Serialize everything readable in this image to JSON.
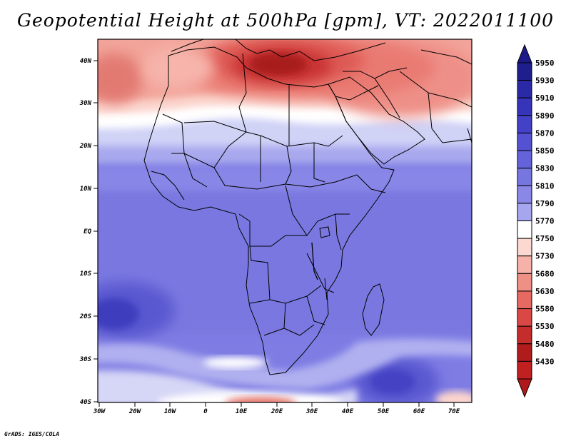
{
  "title": "Geopotential Height at 500hPa [gpm], VT: 2022011100",
  "footer": "GrADS: IGES/COLA",
  "map": {
    "region": "Africa and surrounding seas",
    "lon_range": [
      -30,
      75
    ],
    "lat_range": [
      -40,
      45
    ],
    "lat_ticks": [
      "40N",
      "30N",
      "20N",
      "10N",
      "EQ",
      "10S",
      "20S",
      "30S",
      "40S"
    ],
    "lon_ticks": [
      "30W",
      "20W",
      "10W",
      "0",
      "10E",
      "20E",
      "30E",
      "40E",
      "50E",
      "60E",
      "70E"
    ]
  },
  "colorbar": {
    "labels": [
      "5950",
      "5930",
      "5910",
      "5890",
      "5870",
      "5850",
      "5830",
      "5810",
      "5790",
      "5770",
      "5750",
      "5730",
      "5680",
      "5630",
      "5580",
      "5530",
      "5480",
      "5430"
    ],
    "colors": [
      "#201e8c",
      "#2b2aa6",
      "#3634b8",
      "#4341c6",
      "#5452d2",
      "#6563da",
      "#7775e0",
      "#8988e6",
      "#a6a6ee",
      "#ffffff",
      "#fbd8d0",
      "#f6b2a8",
      "#ef9086",
      "#e66a62",
      "#d94844",
      "#c52c2c",
      "#b01c1c",
      "#c02020"
    ],
    "cap_top_color": "#1c1a86",
    "cap_bottom_color": "#b0181a"
  }
}
